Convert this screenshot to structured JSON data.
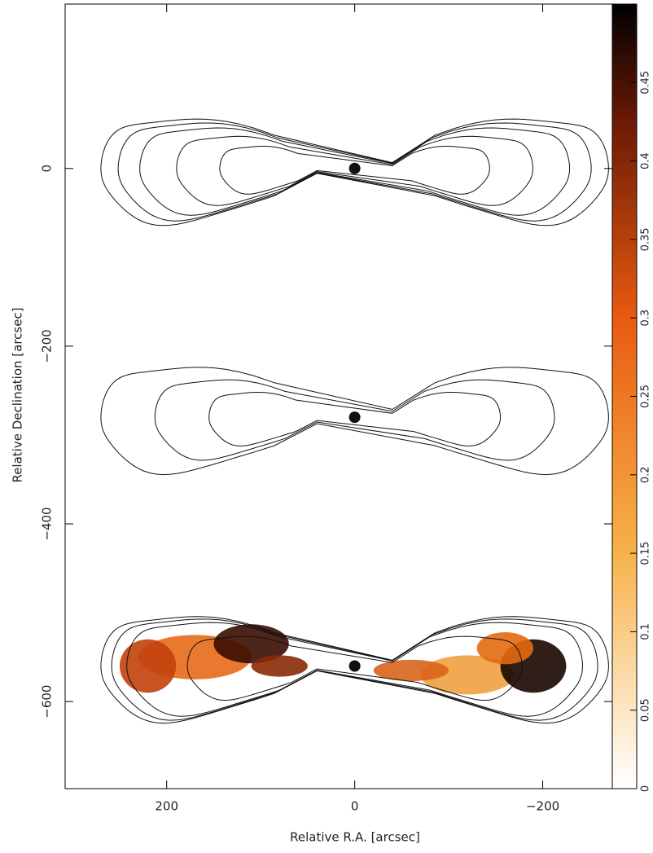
{
  "chart_data": {
    "type": "contour",
    "x_label": "Relative R.A. [arcsec]",
    "y_label": "Relative Declination [arcsec]",
    "xlim": [
      308,
      -274
    ],
    "ylim": [
      -698,
      185
    ],
    "xticks": [
      {
        "value": 200,
        "label": "200"
      },
      {
        "value": 0,
        "label": "0"
      },
      {
        "value": -200,
        "label": "−200"
      }
    ],
    "yticks": [
      {
        "value": 0,
        "label": "0"
      },
      {
        "value": -200,
        "label": "−200"
      },
      {
        "value": -400,
        "label": "−400"
      },
      {
        "value": -600,
        "label": "−600"
      }
    ],
    "colorbar": {
      "lim": [
        0,
        0.5
      ],
      "ticks": [
        0,
        0.05,
        0.1,
        0.15,
        0.2,
        0.25,
        0.3,
        0.35,
        0.4,
        0.45
      ]
    }
  }
}
